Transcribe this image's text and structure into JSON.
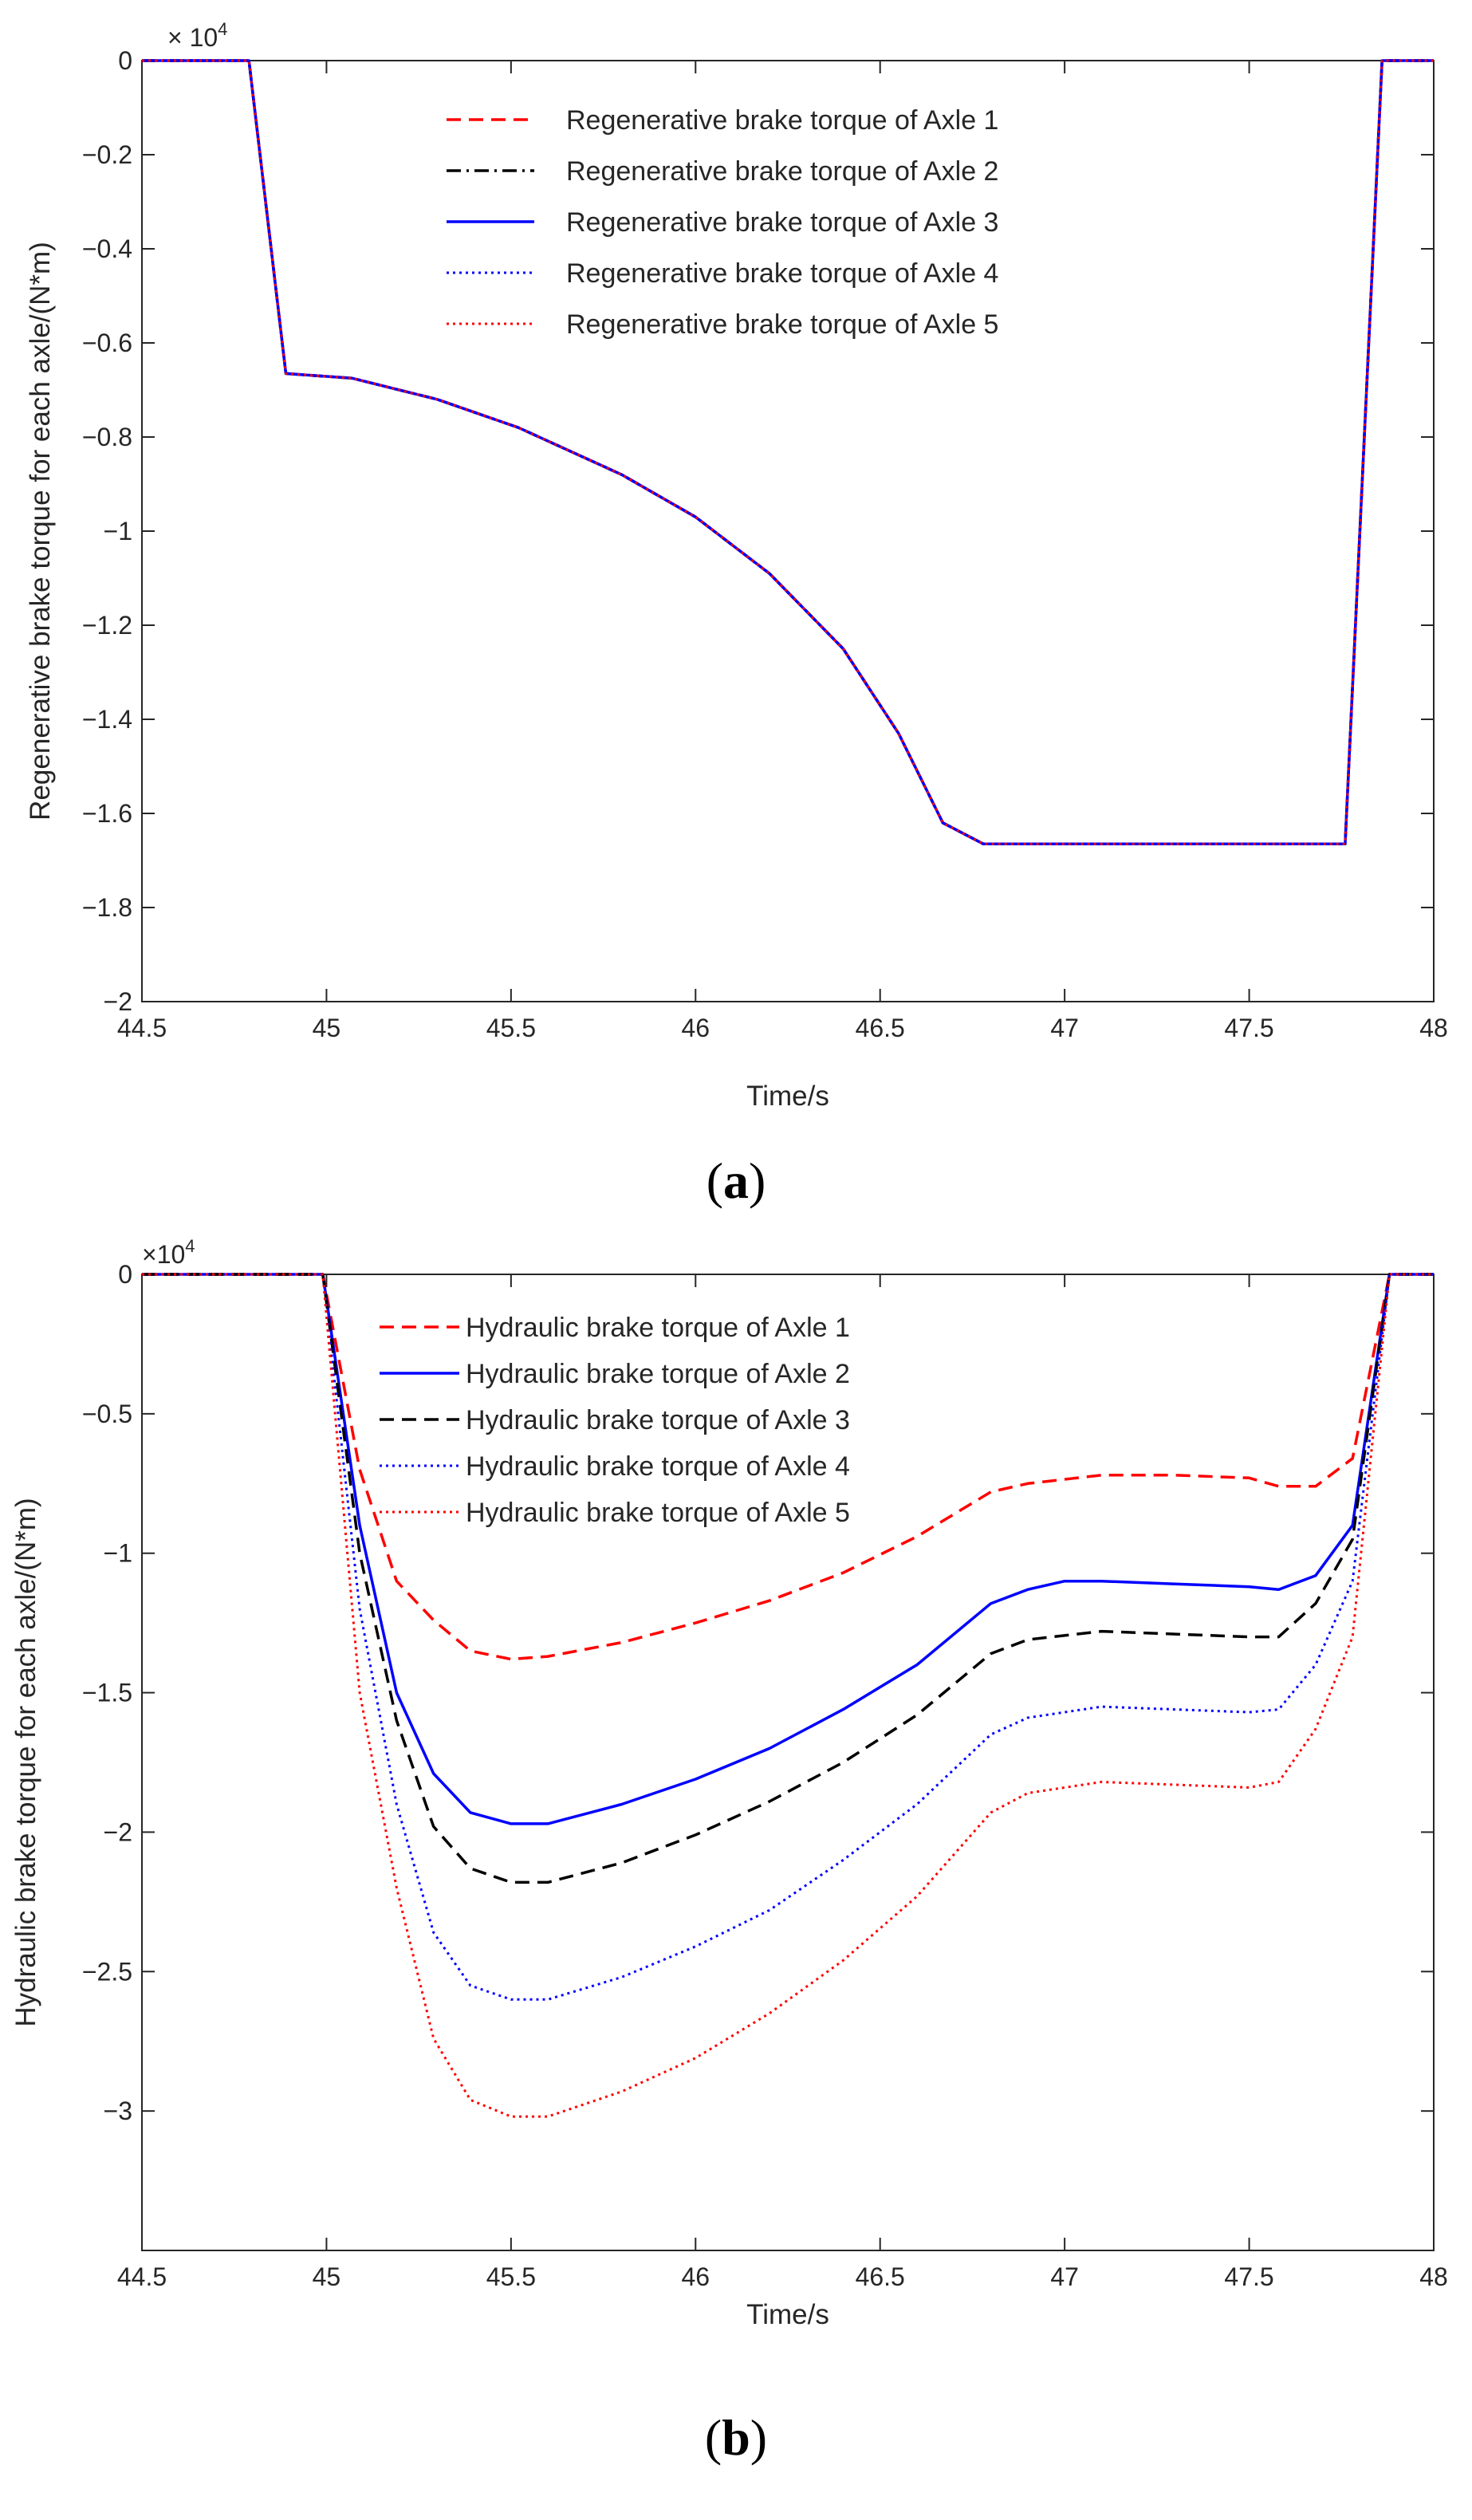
{
  "chart_data": [
    {
      "type": "line",
      "panel_label": "a",
      "ylabel": "Regenerative brake torque for each axle/(N*m)",
      "xlabel": "Time/s",
      "exponent_base": "× 10",
      "exponent_power": "4",
      "xlim": [
        44.5,
        48
      ],
      "ylim": [
        -2,
        0
      ],
      "xticks": [
        44.5,
        45,
        45.5,
        46,
        46.5,
        47,
        47.5,
        48
      ],
      "xtick_labels": [
        "44.5",
        "45",
        "45.5",
        "46",
        "46.5",
        "47",
        "47.5",
        "48"
      ],
      "yticks": [
        0,
        -0.2,
        -0.4,
        -0.6,
        -0.8,
        -1,
        -1.2,
        -1.4,
        -1.6,
        -1.8,
        -2
      ],
      "ytick_labels": [
        "0",
        "−0.2",
        "−0.4",
        "−0.6",
        "−0.8",
        "−1",
        "−1.2",
        "−1.4",
        "−1.6",
        "−1.8",
        "−2"
      ],
      "legend_position": "top-right",
      "series": [
        {
          "name": "Regenerative brake torque of Axle 1",
          "color": "#ff0000",
          "dash": "dash",
          "points": [
            [
              44.5,
              0
            ],
            [
              44.79,
              0
            ],
            [
              44.89,
              -0.665
            ],
            [
              45.07,
              -0.675
            ],
            [
              45.3,
              -0.72
            ],
            [
              45.52,
              -0.78
            ],
            [
              45.8,
              -0.88
            ],
            [
              46.0,
              -0.97
            ],
            [
              46.2,
              -1.09
            ],
            [
              46.4,
              -1.25
            ],
            [
              46.55,
              -1.43
            ],
            [
              46.67,
              -1.62
            ],
            [
              46.78,
              -1.665
            ],
            [
              47.76,
              -1.665
            ],
            [
              47.86,
              0
            ],
            [
              48,
              0
            ]
          ]
        },
        {
          "name": "Regenerative brake torque of Axle 2",
          "color": "#000000",
          "dash": "dashdot",
          "points": [
            [
              44.5,
              0
            ],
            [
              44.79,
              0
            ],
            [
              44.89,
              -0.665
            ],
            [
              45.07,
              -0.675
            ],
            [
              45.3,
              -0.72
            ],
            [
              45.52,
              -0.78
            ],
            [
              45.8,
              -0.88
            ],
            [
              46.0,
              -0.97
            ],
            [
              46.2,
              -1.09
            ],
            [
              46.4,
              -1.25
            ],
            [
              46.55,
              -1.43
            ],
            [
              46.67,
              -1.62
            ],
            [
              46.78,
              -1.665
            ],
            [
              47.76,
              -1.665
            ],
            [
              47.86,
              0
            ],
            [
              48,
              0
            ]
          ]
        },
        {
          "name": "Regenerative brake torque of Axle 3",
          "color": "#0000ff",
          "dash": "solid",
          "points": [
            [
              44.5,
              0
            ],
            [
              44.79,
              0
            ],
            [
              44.89,
              -0.665
            ],
            [
              45.07,
              -0.675
            ],
            [
              45.3,
              -0.72
            ],
            [
              45.52,
              -0.78
            ],
            [
              45.8,
              -0.88
            ],
            [
              46.0,
              -0.97
            ],
            [
              46.2,
              -1.09
            ],
            [
              46.4,
              -1.25
            ],
            [
              46.55,
              -1.43
            ],
            [
              46.67,
              -1.62
            ],
            [
              46.78,
              -1.665
            ],
            [
              47.76,
              -1.665
            ],
            [
              47.86,
              0
            ],
            [
              48,
              0
            ]
          ]
        },
        {
          "name": "Regenerative brake torque of Axle 4",
          "color": "#0000ff",
          "dash": "dot",
          "points": [
            [
              44.5,
              0
            ],
            [
              44.79,
              0
            ],
            [
              44.89,
              -0.665
            ],
            [
              45.07,
              -0.675
            ],
            [
              45.3,
              -0.72
            ],
            [
              45.52,
              -0.78
            ],
            [
              45.8,
              -0.88
            ],
            [
              46.0,
              -0.97
            ],
            [
              46.2,
              -1.09
            ],
            [
              46.4,
              -1.25
            ],
            [
              46.55,
              -1.43
            ],
            [
              46.67,
              -1.62
            ],
            [
              46.78,
              -1.665
            ],
            [
              47.76,
              -1.665
            ],
            [
              47.86,
              0
            ],
            [
              48,
              0
            ]
          ]
        },
        {
          "name": "Regenerative brake torque of Axle 5",
          "color": "#ff0000",
          "dash": "dot",
          "points": [
            [
              44.5,
              0
            ],
            [
              44.79,
              0
            ],
            [
              44.89,
              -0.665
            ],
            [
              45.07,
              -0.675
            ],
            [
              45.3,
              -0.72
            ],
            [
              45.52,
              -0.78
            ],
            [
              45.8,
              -0.88
            ],
            [
              46.0,
              -0.97
            ],
            [
              46.2,
              -1.09
            ],
            [
              46.4,
              -1.25
            ],
            [
              46.55,
              -1.43
            ],
            [
              46.67,
              -1.62
            ],
            [
              46.78,
              -1.665
            ],
            [
              47.76,
              -1.665
            ],
            [
              47.86,
              0
            ],
            [
              48,
              0
            ]
          ]
        }
      ]
    },
    {
      "type": "line",
      "panel_label": "b",
      "ylabel": "Hydraulic brake torque for each axle/(N*m)",
      "xlabel": "Time/s",
      "exponent_base": "×10",
      "exponent_power": "4",
      "xlim": [
        44.5,
        48
      ],
      "ylim": [
        -3.5,
        0
      ],
      "xticks": [
        44.5,
        45,
        45.5,
        46,
        46.5,
        47,
        47.5,
        48
      ],
      "xtick_labels": [
        "44.5",
        "45",
        "45.5",
        "46",
        "46.5",
        "47",
        "47.5",
        "48"
      ],
      "yticks": [
        0,
        -0.5,
        -1,
        -1.5,
        -2,
        -2.5,
        -3
      ],
      "ytick_labels": [
        "0",
        "−0.5",
        "−1",
        "−1.5",
        "−2",
        "−2.5",
        "−3"
      ],
      "legend_position": "top-left",
      "series": [
        {
          "name": "Hydraulic brake torque of Axle 1",
          "color": "#ff0000",
          "dash": "dash",
          "points": [
            [
              44.5,
              0
            ],
            [
              44.99,
              0
            ],
            [
              45.09,
              -0.7
            ],
            [
              45.19,
              -1.1
            ],
            [
              45.29,
              -1.24
            ],
            [
              45.39,
              -1.35
            ],
            [
              45.5,
              -1.38
            ],
            [
              45.6,
              -1.37
            ],
            [
              45.8,
              -1.32
            ],
            [
              46.0,
              -1.25
            ],
            [
              46.2,
              -1.17
            ],
            [
              46.4,
              -1.07
            ],
            [
              46.6,
              -0.94
            ],
            [
              46.8,
              -0.78
            ],
            [
              46.9,
              -0.75
            ],
            [
              47.1,
              -0.72
            ],
            [
              47.3,
              -0.72
            ],
            [
              47.5,
              -0.73
            ],
            [
              47.58,
              -0.76
            ],
            [
              47.68,
              -0.76
            ],
            [
              47.78,
              -0.66
            ],
            [
              47.88,
              0
            ],
            [
              48,
              0
            ]
          ]
        },
        {
          "name": "Hydraulic brake torque of Axle 2",
          "color": "#0000ff",
          "dash": "solid",
          "points": [
            [
              44.5,
              0
            ],
            [
              44.99,
              0
            ],
            [
              45.09,
              -0.9
            ],
            [
              45.19,
              -1.5
            ],
            [
              45.29,
              -1.79
            ],
            [
              45.39,
              -1.93
            ],
            [
              45.5,
              -1.97
            ],
            [
              45.6,
              -1.97
            ],
            [
              45.8,
              -1.9
            ],
            [
              46.0,
              -1.81
            ],
            [
              46.2,
              -1.7
            ],
            [
              46.4,
              -1.56
            ],
            [
              46.6,
              -1.4
            ],
            [
              46.8,
              -1.18
            ],
            [
              46.9,
              -1.13
            ],
            [
              47.0,
              -1.1
            ],
            [
              47.1,
              -1.1
            ],
            [
              47.3,
              -1.11
            ],
            [
              47.5,
              -1.12
            ],
            [
              47.58,
              -1.13
            ],
            [
              47.68,
              -1.08
            ],
            [
              47.78,
              -0.9
            ],
            [
              47.88,
              0
            ],
            [
              48,
              0
            ]
          ]
        },
        {
          "name": "Hydraulic brake torque of Axle 3",
          "color": "#000000",
          "dash": "dash",
          "points": [
            [
              44.5,
              0
            ],
            [
              44.99,
              0
            ],
            [
              45.09,
              -1.0
            ],
            [
              45.19,
              -1.6
            ],
            [
              45.29,
              -1.98
            ],
            [
              45.39,
              -2.13
            ],
            [
              45.5,
              -2.18
            ],
            [
              45.6,
              -2.18
            ],
            [
              45.8,
              -2.11
            ],
            [
              46.0,
              -2.01
            ],
            [
              46.2,
              -1.89
            ],
            [
              46.4,
              -1.75
            ],
            [
              46.6,
              -1.58
            ],
            [
              46.8,
              -1.36
            ],
            [
              46.9,
              -1.31
            ],
            [
              47.1,
              -1.28
            ],
            [
              47.3,
              -1.29
            ],
            [
              47.5,
              -1.3
            ],
            [
              47.58,
              -1.3
            ],
            [
              47.68,
              -1.18
            ],
            [
              47.78,
              -0.95
            ],
            [
              47.88,
              0
            ],
            [
              48,
              0
            ]
          ]
        },
        {
          "name": "Hydraulic brake torque of Axle 4",
          "color": "#0000ff",
          "dash": "dot",
          "points": [
            [
              44.5,
              0
            ],
            [
              44.99,
              0
            ],
            [
              45.09,
              -1.2
            ],
            [
              45.19,
              -1.9
            ],
            [
              45.29,
              -2.36
            ],
            [
              45.39,
              -2.55
            ],
            [
              45.5,
              -2.6
            ],
            [
              45.6,
              -2.6
            ],
            [
              45.8,
              -2.52
            ],
            [
              46.0,
              -2.41
            ],
            [
              46.2,
              -2.28
            ],
            [
              46.4,
              -2.1
            ],
            [
              46.6,
              -1.9
            ],
            [
              46.8,
              -1.65
            ],
            [
              46.9,
              -1.59
            ],
            [
              47.1,
              -1.55
            ],
            [
              47.3,
              -1.56
            ],
            [
              47.5,
              -1.57
            ],
            [
              47.58,
              -1.56
            ],
            [
              47.68,
              -1.4
            ],
            [
              47.78,
              -1.1
            ],
            [
              47.88,
              0
            ],
            [
              48,
              0
            ]
          ]
        },
        {
          "name": "Hydraulic brake torque of Axle 5",
          "color": "#ff0000",
          "dash": "dot",
          "points": [
            [
              44.5,
              0
            ],
            [
              44.99,
              0
            ],
            [
              45.09,
              -1.5
            ],
            [
              45.19,
              -2.2
            ],
            [
              45.29,
              -2.74
            ],
            [
              45.39,
              -2.96
            ],
            [
              45.5,
              -3.02
            ],
            [
              45.6,
              -3.02
            ],
            [
              45.8,
              -2.93
            ],
            [
              46.0,
              -2.81
            ],
            [
              46.2,
              -2.65
            ],
            [
              46.4,
              -2.46
            ],
            [
              46.6,
              -2.23
            ],
            [
              46.8,
              -1.93
            ],
            [
              46.9,
              -1.86
            ],
            [
              47.1,
              -1.82
            ],
            [
              47.3,
              -1.83
            ],
            [
              47.5,
              -1.84
            ],
            [
              47.58,
              -1.82
            ],
            [
              47.68,
              -1.63
            ],
            [
              47.78,
              -1.3
            ],
            [
              47.88,
              0
            ],
            [
              48,
              0
            ]
          ]
        }
      ]
    }
  ]
}
